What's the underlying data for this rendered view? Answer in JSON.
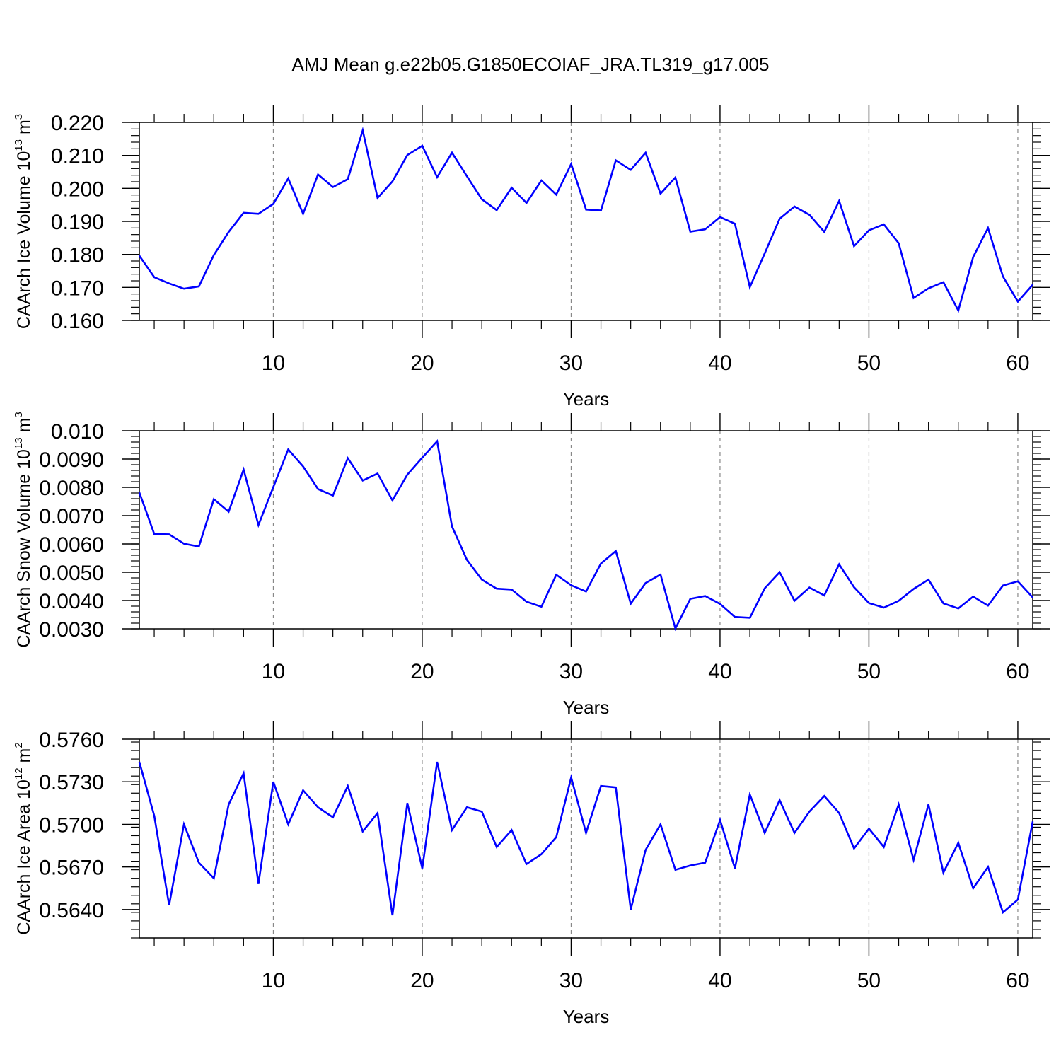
{
  "title": "AMJ Mean g.e22b05.G1850ECOIAF_JRA.TL319_g17.005",
  "line_color": "#0000ff",
  "chart_data": [
    {
      "type": "line",
      "ylabel": "CAArch Ice Volume 10",
      "ylabel_sup": "13",
      "ylabel_unit": " m",
      "ylabel_unit_sup": "3",
      "xlabel": "Years",
      "xlim": [
        1,
        61
      ],
      "ylim": [
        0.16,
        0.22
      ],
      "yticks": [
        0.16,
        0.17,
        0.18,
        0.19,
        0.2,
        0.21,
        0.22
      ],
      "ytick_labels": [
        "0.160",
        "0.170",
        "0.180",
        "0.190",
        "0.200",
        "0.210",
        "0.220"
      ],
      "yminor_step": 0.002,
      "xticks": [
        10,
        20,
        30,
        40,
        50,
        60
      ],
      "xtick_labels": [
        "10",
        "20",
        "30",
        "40",
        "50",
        "60"
      ],
      "series": [
        {
          "name": "CAArch Ice Volume",
          "values": [
            0.1796,
            0.1731,
            0.1712,
            0.1696,
            0.1703,
            0.1798,
            0.1868,
            0.1926,
            0.1923,
            0.1953,
            0.203,
            0.1923,
            0.2042,
            0.2004,
            0.2028,
            0.2176,
            0.1971,
            0.2021,
            0.2101,
            0.2129,
            0.2034,
            0.2108,
            0.2037,
            0.1967,
            0.1934,
            0.2002,
            0.1956,
            0.2024,
            0.1981,
            0.2074,
            0.1936,
            0.1933,
            0.2085,
            0.2056,
            0.2108,
            0.1984,
            0.2033,
            0.1869,
            0.1876,
            0.1913,
            0.1893,
            0.1701,
            0.1803,
            0.1908,
            0.1945,
            0.192,
            0.1868,
            0.1962,
            0.1825,
            0.1873,
            0.1891,
            0.1834,
            0.1668,
            0.1697,
            0.1716,
            0.163,
            0.1792,
            0.188,
            0.1733,
            0.1657,
            0.1708
          ]
        }
      ]
    },
    {
      "type": "line",
      "ylabel": "CAArch Snow Volume 10",
      "ylabel_sup": "13",
      "ylabel_unit": " m",
      "ylabel_unit_sup": "3",
      "xlabel": "Years",
      "xlim": [
        1,
        61
      ],
      "ylim": [
        0.003,
        0.01
      ],
      "yticks": [
        0.003,
        0.004,
        0.005,
        0.006,
        0.007,
        0.008,
        0.009,
        0.01
      ],
      "ytick_labels": [
        "0.0030",
        "0.0040",
        "0.0050",
        "0.0060",
        "0.0070",
        "0.0080",
        "0.0090",
        "0.010"
      ],
      "yminor_step": 0.0002,
      "xticks": [
        10,
        20,
        30,
        40,
        50,
        60
      ],
      "xtick_labels": [
        "10",
        "20",
        "30",
        "40",
        "50",
        "60"
      ],
      "series": [
        {
          "name": "CAArch Snow Volume",
          "values": [
            0.00782,
            0.00635,
            0.00634,
            0.00601,
            0.00591,
            0.00758,
            0.00714,
            0.00863,
            0.00667,
            0.00801,
            0.00934,
            0.00874,
            0.00794,
            0.00771,
            0.00903,
            0.00824,
            0.00849,
            0.00754,
            0.00845,
            0.00905,
            0.00963,
            0.00662,
            0.00544,
            0.00474,
            0.00442,
            0.00439,
            0.00396,
            0.00378,
            0.00491,
            0.00454,
            0.00432,
            0.00531,
            0.00575,
            0.00389,
            0.00462,
            0.00492,
            0.00301,
            0.00406,
            0.00416,
            0.00388,
            0.00342,
            0.00339,
            0.00443,
            0.005,
            0.00399,
            0.00446,
            0.00418,
            0.00528,
            0.00447,
            0.00391,
            0.00375,
            0.00399,
            0.00441,
            0.00474,
            0.0039,
            0.00372,
            0.00414,
            0.00382,
            0.00453,
            0.00468,
            0.00411
          ]
        }
      ]
    },
    {
      "type": "line",
      "ylabel": "CAArch Ice Area 10",
      "ylabel_sup": "12",
      "ylabel_unit": " m",
      "ylabel_unit_sup": "2",
      "xlabel": "Years",
      "xlim": [
        1,
        61
      ],
      "ylim": [
        0.562,
        0.576
      ],
      "yticks": [
        0.564,
        0.567,
        0.57,
        0.573,
        0.576
      ],
      "ytick_labels": [
        "0.5640",
        "0.5670",
        "0.5700",
        "0.5730",
        "0.5760"
      ],
      "yminor_step": 0.0006,
      "xticks": [
        10,
        20,
        30,
        40,
        50,
        60
      ],
      "xtick_labels": [
        "10",
        "20",
        "30",
        "40",
        "50",
        "60"
      ],
      "series": [
        {
          "name": "CAArch Ice Area",
          "values": [
            0.5744,
            0.5706,
            0.5643,
            0.57,
            0.5673,
            0.5662,
            0.5714,
            0.5736,
            0.5658,
            0.573,
            0.57,
            0.5724,
            0.5712,
            0.5705,
            0.5727,
            0.5695,
            0.5708,
            0.5636,
            0.5715,
            0.5669,
            0.5744,
            0.5696,
            0.5712,
            0.5709,
            0.5684,
            0.5696,
            0.5672,
            0.5679,
            0.5691,
            0.5733,
            0.5694,
            0.5727,
            0.5726,
            0.564,
            0.5682,
            0.57,
            0.5668,
            0.5671,
            0.5673,
            0.5703,
            0.5669,
            0.5721,
            0.5694,
            0.5717,
            0.5694,
            0.5709,
            0.572,
            0.5708,
            0.5683,
            0.5697,
            0.5684,
            0.5714,
            0.5675,
            0.5714,
            0.5666,
            0.5687,
            0.5655,
            0.567,
            0.5638,
            0.5647,
            0.5702
          ]
        }
      ]
    }
  ]
}
